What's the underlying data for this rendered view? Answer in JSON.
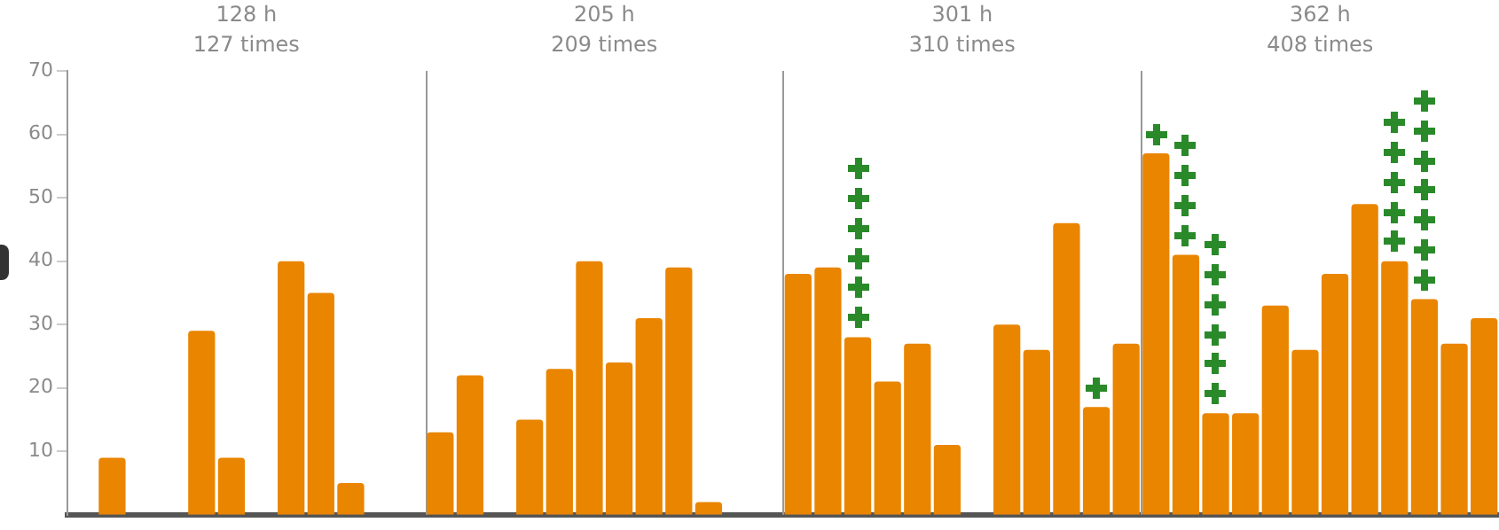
{
  "chart_data": {
    "type": "bar",
    "categories": [
      null,
      null,
      null,
      null,
      null,
      null,
      null,
      null,
      null,
      null,
      null,
      null,
      null,
      null,
      null,
      null,
      null,
      null,
      null,
      null,
      null,
      null,
      null,
      null,
      null,
      null,
      null,
      null,
      null,
      null,
      null,
      null,
      null,
      null,
      null,
      null,
      null,
      null,
      null,
      null,
      null,
      null,
      null,
      null,
      null,
      null,
      null,
      null
    ],
    "values": [
      null,
      9,
      null,
      null,
      29,
      9,
      null,
      40,
      35,
      5,
      null,
      null,
      13,
      22,
      null,
      15,
      23,
      40,
      24,
      31,
      39,
      2,
      null,
      null,
      38,
      39,
      28,
      21,
      27,
      11,
      null,
      30,
      26,
      46,
      17,
      27,
      57,
      41,
      16,
      16,
      33,
      26,
      38,
      49,
      40,
      34,
      27,
      31
    ],
    "color": "#ea8500",
    "ylim": [
      0,
      70
    ],
    "yticks": [
      10,
      20,
      30,
      40,
      50,
      60,
      70
    ],
    "grid": "x",
    "annotations": [
      "128 h\n127 times",
      "205 h\n209 times",
      "301 h\n310 times",
      "362 h\n408 times"
    ]
  }
}
